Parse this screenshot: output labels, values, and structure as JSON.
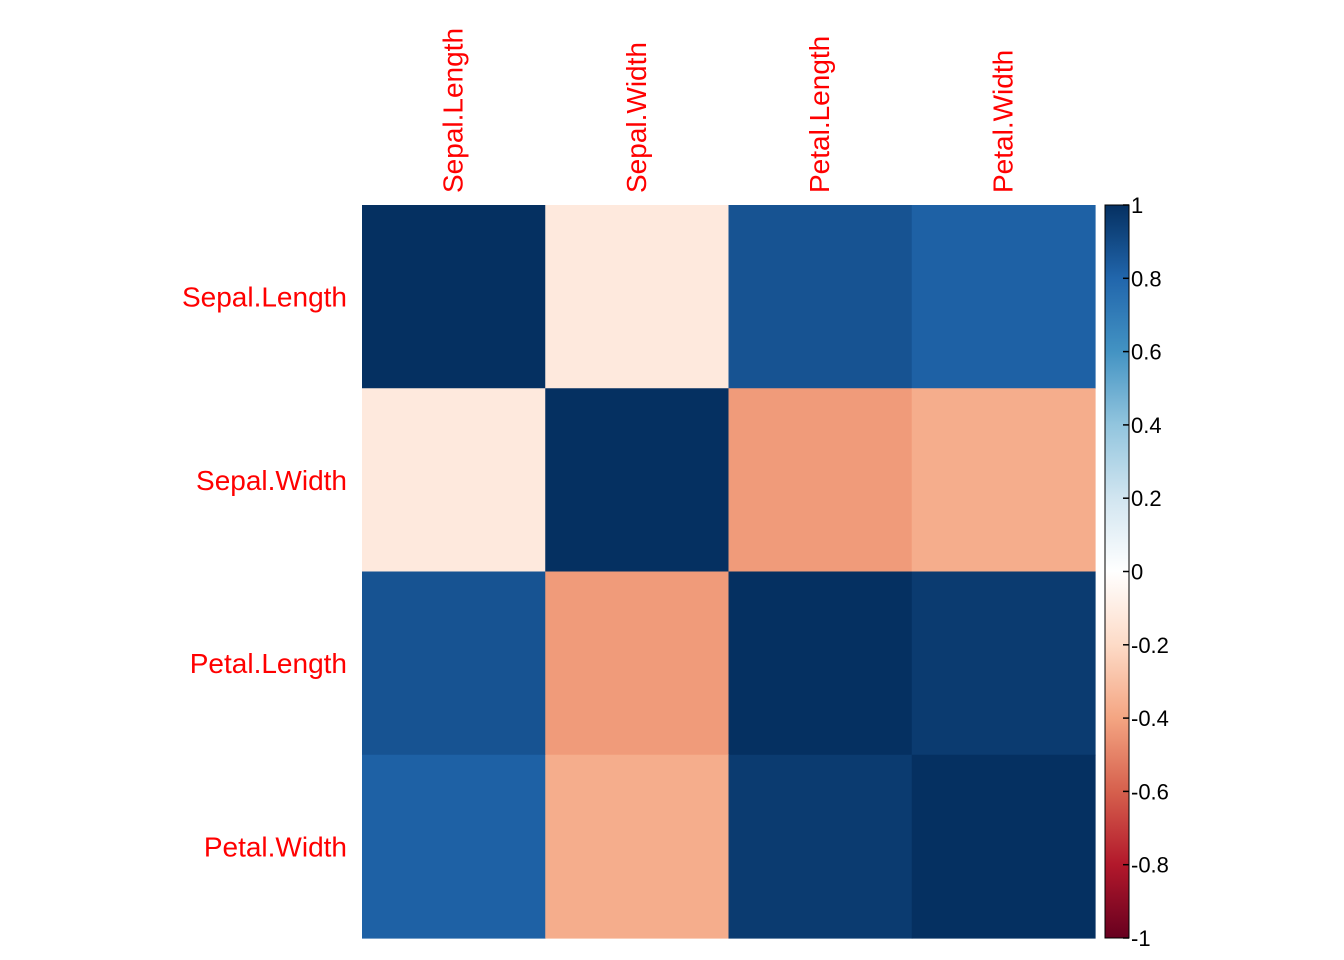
{
  "chart_data": {
    "type": "heatmap",
    "title": "",
    "variables": [
      "Sepal.Length",
      "Sepal.Width",
      "Petal.Length",
      "Petal.Width"
    ],
    "matrix": [
      [
        1.0,
        -0.12,
        0.87,
        0.82
      ],
      [
        -0.12,
        1.0,
        -0.43,
        -0.37
      ],
      [
        0.87,
        -0.43,
        1.0,
        0.96
      ],
      [
        0.82,
        -0.37,
        0.96,
        1.0
      ]
    ],
    "color_scale": {
      "range": [
        -1,
        1
      ],
      "ticks": [
        1,
        0.8,
        0.6,
        0.4,
        0.2,
        0,
        -0.2,
        -0.4,
        -0.6,
        -0.8,
        -1
      ],
      "palette_low_to_high": [
        "#67001f",
        "#b2182b",
        "#d6604d",
        "#f4a582",
        "#fddbc7",
        "#ffffff",
        "#d1e5f0",
        "#92c5de",
        "#4393c3",
        "#2166ac",
        "#053061"
      ]
    },
    "label_color": "#ff0000",
    "legend_position": "right"
  }
}
